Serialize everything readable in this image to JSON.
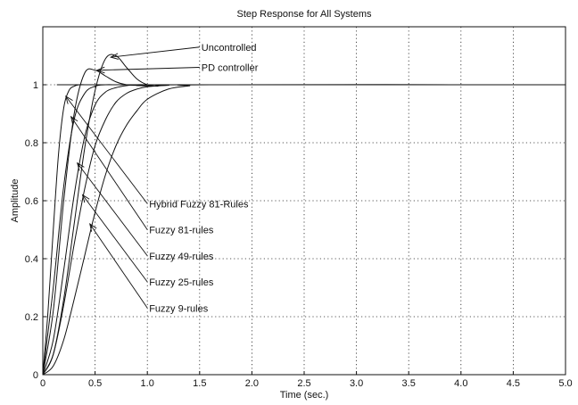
{
  "chart_data": {
    "type": "line",
    "title": "Step Response for All Systems",
    "xlabel": "Time (sec.)",
    "ylabel": "Amplitude",
    "xlim": [
      0,
      5.0
    ],
    "ylim": [
      0,
      1.2
    ],
    "xticks": [
      "0",
      "0.5",
      "1.0",
      "1.5",
      "2.0",
      "2.5",
      "3.0",
      "3.5",
      "4.0",
      "4.5",
      "5.0"
    ],
    "yticks": [
      "0",
      "0.2",
      "0.4",
      "0.6",
      "0.8",
      "1"
    ],
    "grid": true,
    "series": [
      {
        "name": "Uncontrolled",
        "x": [
          0,
          0.1,
          0.2,
          0.3,
          0.4,
          0.5,
          0.6,
          0.7,
          0.8,
          0.9,
          1.0,
          1.1,
          1.2,
          5.0
        ],
        "values": [
          0,
          0.07,
          0.26,
          0.52,
          0.78,
          0.98,
          1.09,
          1.1,
          1.06,
          1.02,
          1.0,
          0.995,
          1.0,
          1.0
        ]
      },
      {
        "name": "PD controller",
        "x": [
          0,
          0.1,
          0.2,
          0.3,
          0.4,
          0.5,
          0.6,
          0.7,
          0.8,
          0.9,
          1.0,
          1.2,
          5.0
        ],
        "values": [
          0,
          0.22,
          0.6,
          0.9,
          1.04,
          1.05,
          1.03,
          1.01,
          1.0,
          0.998,
          1.0,
          1.0,
          1.0
        ]
      },
      {
        "name": "Hybrid Fuzzy 81-Rules",
        "x": [
          0,
          0.05,
          0.1,
          0.15,
          0.2,
          0.25,
          0.3,
          0.35,
          0.4,
          0.5,
          5.0
        ],
        "values": [
          0,
          0.22,
          0.5,
          0.76,
          0.92,
          0.98,
          0.995,
          1.0,
          1.0,
          1.0,
          1.0
        ]
      },
      {
        "name": "Fuzzy 81-rules",
        "x": [
          0,
          0.1,
          0.2,
          0.3,
          0.4,
          0.5,
          0.6,
          0.7,
          0.8,
          5.0
        ],
        "values": [
          0,
          0.3,
          0.65,
          0.88,
          0.97,
          0.995,
          1.0,
          1.0,
          1.0,
          1.0
        ]
      },
      {
        "name": "Fuzzy 49-rules",
        "x": [
          0,
          0.1,
          0.2,
          0.3,
          0.4,
          0.5,
          0.6,
          0.7,
          0.8,
          0.9,
          1.0,
          1.1,
          5.0
        ],
        "values": [
          0,
          0.12,
          0.36,
          0.62,
          0.82,
          0.93,
          0.975,
          0.99,
          0.997,
          1.0,
          1.0,
          1.0,
          1.0
        ]
      },
      {
        "name": "Fuzzy 25-rules",
        "x": [
          0,
          0.1,
          0.2,
          0.3,
          0.4,
          0.5,
          0.6,
          0.7,
          0.8,
          0.9,
          1.0,
          1.2,
          1.4,
          5.0
        ],
        "values": [
          0,
          0.07,
          0.24,
          0.45,
          0.64,
          0.79,
          0.88,
          0.94,
          0.97,
          0.985,
          0.993,
          0.998,
          1.0,
          1.0
        ]
      },
      {
        "name": "Fuzzy 9-rules",
        "x": [
          0,
          0.1,
          0.2,
          0.3,
          0.4,
          0.5,
          0.6,
          0.7,
          0.8,
          0.9,
          1.0,
          1.2,
          1.4,
          1.6,
          5.0
        ],
        "values": [
          0,
          0.03,
          0.12,
          0.26,
          0.41,
          0.56,
          0.69,
          0.79,
          0.86,
          0.91,
          0.95,
          0.985,
          0.996,
          1.0,
          1.0
        ]
      }
    ],
    "annotations": [
      {
        "label": "Uncontrolled",
        "series": "Uncontrolled",
        "x": 0.65,
        "y": 1.095,
        "text_x": 1.5,
        "text_y": 1.13
      },
      {
        "label": "PD controller",
        "series": "PD controller",
        "x": 0.52,
        "y": 1.05,
        "text_x": 1.5,
        "text_y": 1.06
      },
      {
        "label": "Hybrid Fuzzy 81-Rules",
        "series": "Hybrid Fuzzy 81-Rules",
        "x": 0.22,
        "y": 0.96,
        "text_x": 1.0,
        "text_y": 0.59
      },
      {
        "label": "Fuzzy 81-rules",
        "series": "Fuzzy 81-rules",
        "x": 0.27,
        "y": 0.89,
        "text_x": 1.0,
        "text_y": 0.5
      },
      {
        "label": "Fuzzy 49-rules",
        "series": "Fuzzy 49-rules",
        "x": 0.33,
        "y": 0.73,
        "text_x": 1.0,
        "text_y": 0.41
      },
      {
        "label": "Fuzzy 25-rules",
        "series": "Fuzzy 25-rules",
        "x": 0.38,
        "y": 0.62,
        "text_x": 1.0,
        "text_y": 0.32
      },
      {
        "label": "Fuzzy 9-rules",
        "series": "Fuzzy 9-rules",
        "x": 0.45,
        "y": 0.52,
        "text_x": 1.0,
        "text_y": 0.23
      }
    ]
  }
}
